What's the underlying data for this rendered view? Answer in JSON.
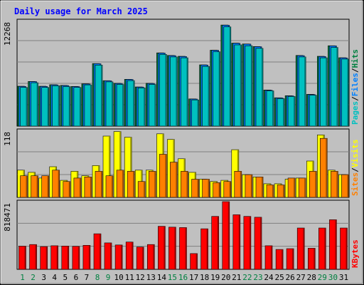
{
  "chart_data": [
    {
      "type": "bar",
      "title": "Daily usage for March 2025",
      "panel": "pages-files-hits",
      "categories": [
        "1",
        "2",
        "3",
        "4",
        "5",
        "6",
        "7",
        "8",
        "9",
        "10",
        "11",
        "12",
        "13",
        "14",
        "15",
        "16",
        "17",
        "18",
        "19",
        "20",
        "21",
        "22",
        "23",
        "24",
        "25",
        "26",
        "27",
        "28",
        "29",
        "30",
        "31"
      ],
      "ymax_label": "12268",
      "ylim": [
        0,
        12268
      ],
      "legend": [
        {
          "text": "Pages",
          "color": "#00c0c0"
        },
        {
          "text": "Files",
          "color": "#0080ff"
        },
        {
          "text": "Hits",
          "color": "#008040"
        }
      ],
      "separator": "/",
      "series": [
        {
          "name": "Hits",
          "color": "#008040",
          "values": [
            4640,
            5200,
            4640,
            4820,
            4740,
            4620,
            4920,
            7280,
            5290,
            4980,
            5450,
            4560,
            4980,
            8520,
            8220,
            8120,
            3170,
            7130,
            8840,
            11760,
            9660,
            9560,
            9260,
            4200,
            3300,
            3540,
            8220,
            3700,
            8120,
            9350,
            7960
          ]
        },
        {
          "name": "Files",
          "color": "#0080ff",
          "values": [
            4620,
            5180,
            4620,
            4800,
            4720,
            4600,
            4900,
            7260,
            5270,
            4960,
            5430,
            4540,
            4960,
            8500,
            8200,
            8100,
            3150,
            7110,
            8820,
            11740,
            9640,
            9540,
            9240,
            4180,
            3280,
            3520,
            8200,
            3680,
            8100,
            9330,
            7940
          ]
        },
        {
          "name": "Pages",
          "color": "#00c0c0",
          "values": [
            4500,
            5050,
            4500,
            4700,
            4600,
            4500,
            4800,
            7100,
            5150,
            4850,
            5300,
            4450,
            4850,
            8350,
            8050,
            7950,
            3050,
            6950,
            8650,
            11550,
            9450,
            9350,
            9050,
            4100,
            3200,
            3450,
            8050,
            3600,
            7950,
            9150,
            7800
          ]
        }
      ]
    },
    {
      "type": "bar",
      "panel": "sites-visits",
      "categories": [
        "1",
        "2",
        "3",
        "4",
        "5",
        "6",
        "7",
        "8",
        "9",
        "10",
        "11",
        "12",
        "13",
        "14",
        "15",
        "16",
        "17",
        "18",
        "19",
        "20",
        "21",
        "22",
        "23",
        "24",
        "25",
        "26",
        "27",
        "28",
        "29",
        "30",
        "31"
      ],
      "ymax_label": "118",
      "ylim": [
        0,
        118
      ],
      "legend": [
        {
          "text": "Sites",
          "color": "#ff8000"
        },
        {
          "text": "Visits",
          "color": "#ffff00"
        }
      ],
      "separator": "/",
      "series": [
        {
          "name": "Visits",
          "color": "#ffff00",
          "values": [
            48,
            44,
            34,
            54,
            30,
            46,
            38,
            56,
            108,
            116,
            106,
            48,
            48,
            112,
            102,
            68,
            44,
            32,
            28,
            30,
            84,
            40,
            36,
            24,
            24,
            32,
            34,
            64,
            110,
            48,
            40
          ]
        },
        {
          "name": "Sites",
          "color": "#ff8000",
          "values": [
            38,
            38,
            38,
            48,
            28,
            34,
            36,
            46,
            38,
            48,
            46,
            28,
            46,
            76,
            62,
            46,
            32,
            32,
            26,
            28,
            46,
            40,
            36,
            22,
            22,
            34,
            34,
            46,
            104,
            46,
            40
          ]
        }
      ]
    },
    {
      "type": "bar",
      "panel": "kbytes",
      "categories": [
        "1",
        "2",
        "3",
        "4",
        "5",
        "6",
        "7",
        "8",
        "9",
        "10",
        "11",
        "12",
        "13",
        "14",
        "15",
        "16",
        "17",
        "18",
        "19",
        "20",
        "21",
        "22",
        "23",
        "24",
        "25",
        "26",
        "27",
        "28",
        "29",
        "30",
        "31"
      ],
      "ymax_label": "818471",
      "ylim": [
        0,
        818471
      ],
      "legend": [
        {
          "text": "KBytes",
          "color": "#ff0000"
        }
      ],
      "separator": "",
      "series": [
        {
          "name": "KBytes",
          "color": "#ff0000",
          "values": [
            280000,
            300000,
            275000,
            285000,
            282000,
            278000,
            290000,
            430000,
            320000,
            295000,
            330000,
            270000,
            300000,
            520000,
            510000,
            505000,
            190000,
            490000,
            640000,
            818471,
            660000,
            640000,
            630000,
            285000,
            240000,
            250000,
            500000,
            255000,
            500000,
            600000,
            500000
          ]
        }
      ]
    }
  ],
  "x_labels_weekend_color": "#008040",
  "x_labels_weekday_color": "#000000",
  "weekend_days": [
    1,
    2,
    8,
    9,
    15,
    16,
    22,
    23,
    29,
    30
  ]
}
